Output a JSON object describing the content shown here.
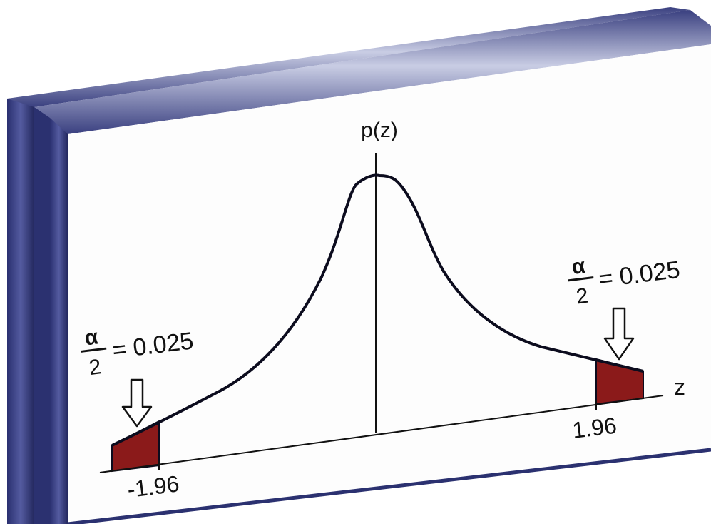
{
  "y_axis_label": "p(z)",
  "x_axis_label": "z",
  "left_tail": {
    "critical_value_label": "-1.96",
    "fraction_numerator": "α",
    "fraction_denominator": "2",
    "area_text": "= 0.025"
  },
  "right_tail": {
    "critical_value_label": "1.96",
    "fraction_numerator": "α",
    "fraction_denominator": "2",
    "area_text": "= 0.025"
  },
  "colors": {
    "tail_fill": "#8B1A1A",
    "curve": "#0c0c1e",
    "panel_frame": "#2b3170",
    "panel_face": "#fdfdfd"
  }
}
